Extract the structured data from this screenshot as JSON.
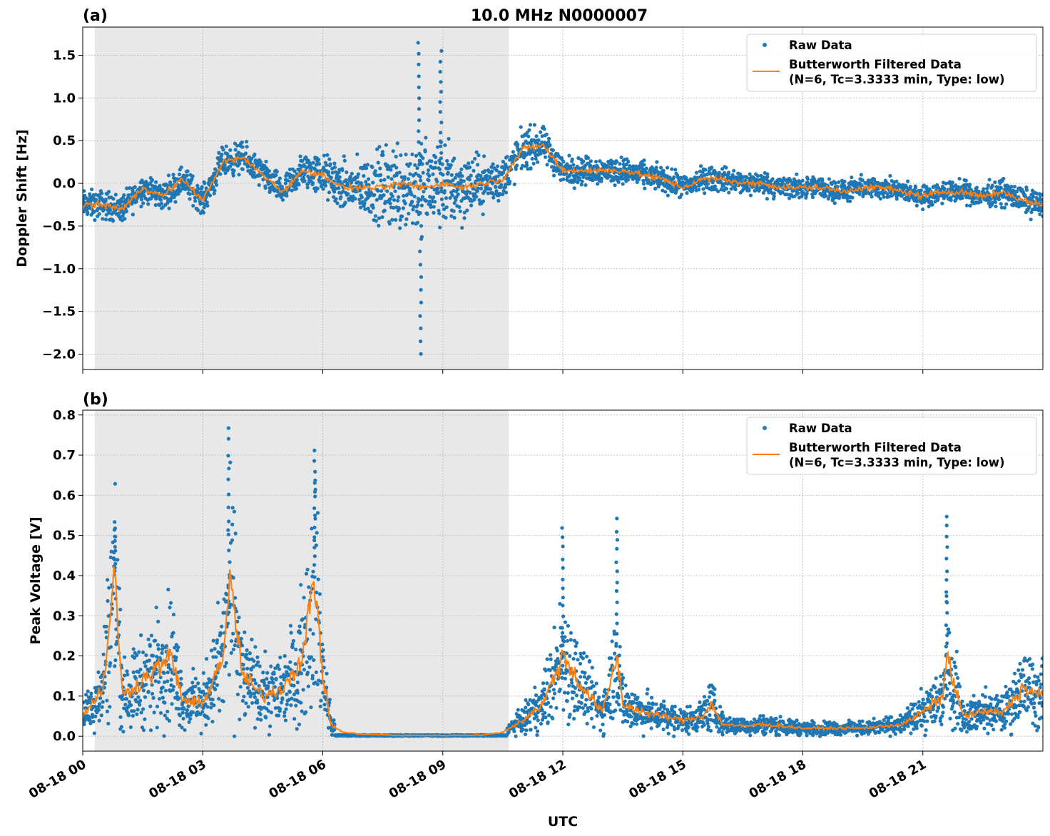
{
  "chart_data": [
    {
      "type": "scatter+line",
      "panel_label": "(a)",
      "title": "10.0 MHz N0000007",
      "xlabel": "",
      "ylabel": "Doppler Shift [Hz]",
      "xlim_hours_utc": [
        0,
        24
      ],
      "ylim": [
        -2.18,
        1.83
      ],
      "yticks": [
        -2.0,
        -1.5,
        -1.0,
        -0.5,
        0.0,
        0.5,
        1.0,
        1.5
      ],
      "ytick_labels": [
        "−2.0",
        "−1.5",
        "−1.0",
        "−0.5",
        "0.0",
        "0.5",
        "1.0",
        "1.5"
      ],
      "grid": true,
      "legend_position": "top-right",
      "shaded_interval_hours_utc": [
        0.3,
        10.65
      ],
      "series": [
        {
          "name": "Raw Data",
          "kind": "scatter",
          "color": "#1f77b4",
          "approx_spread_hours": [
            0,
            1,
            2,
            3,
            4,
            5,
            6,
            7,
            8,
            9,
            10,
            10.7,
            11,
            12,
            14,
            16,
            20,
            22,
            23,
            24
          ],
          "approx_spread_hz": [
            0.2,
            0.2,
            0.2,
            0.2,
            0.22,
            0.2,
            0.3,
            0.4,
            0.7,
            0.65,
            0.35,
            0.3,
            0.3,
            0.2,
            0.18,
            0.17,
            0.15,
            0.15,
            0.18,
            0.18
          ],
          "extremes": [
            {
              "x": 8.45,
              "y": -2.0
            },
            {
              "x": 8.4,
              "y": 1.65
            },
            {
              "x": 8.95,
              "y": 1.55
            }
          ]
        },
        {
          "name": "Butterworth Filtered Data\n(N=6, Tc=3.3333 min, Type: low)",
          "kind": "line",
          "color": "#ff7f0e",
          "x_hours": [
            0,
            0.5,
            1,
            1.5,
            2,
            2.5,
            3,
            3.5,
            4,
            4.5,
            5,
            5.5,
            6,
            6.5,
            7,
            7.5,
            8,
            8.5,
            9,
            9.5,
            10,
            10.5,
            11,
            11.5,
            12,
            12.5,
            13,
            13.5,
            14,
            14.5,
            15,
            15.5,
            16,
            16.5,
            17,
            17.5,
            18,
            18.5,
            19,
            19.5,
            20,
            20.5,
            21,
            21.5,
            22,
            22.5,
            23,
            23.5,
            24
          ],
          "y": [
            -0.25,
            -0.25,
            -0.3,
            -0.05,
            -0.15,
            0.05,
            -0.2,
            0.25,
            0.3,
            0.1,
            -0.1,
            0.15,
            0.1,
            -0.05,
            -0.05,
            -0.05,
            0.0,
            -0.05,
            0.0,
            -0.05,
            0.0,
            0.05,
            0.4,
            0.45,
            0.15,
            0.15,
            0.15,
            0.15,
            0.1,
            0.05,
            -0.05,
            0.05,
            0.05,
            0.0,
            0.0,
            -0.05,
            -0.05,
            -0.05,
            -0.1,
            -0.05,
            -0.05,
            -0.1,
            -0.15,
            -0.1,
            -0.1,
            -0.15,
            -0.1,
            -0.2,
            -0.25
          ]
        }
      ]
    },
    {
      "type": "scatter+line",
      "panel_label": "(b)",
      "title": "",
      "xlabel": "UTC",
      "ylabel": "Peak Voltage [V]",
      "xlim_hours_utc": [
        0,
        24
      ],
      "ylim": [
        -0.037,
        0.812
      ],
      "yticks": [
        0.0,
        0.1,
        0.2,
        0.3,
        0.4,
        0.5,
        0.6,
        0.7,
        0.8
      ],
      "ytick_labels": [
        "0.0",
        "0.1",
        "0.2",
        "0.3",
        "0.4",
        "0.5",
        "0.6",
        "0.7",
        "0.8"
      ],
      "grid": true,
      "legend_position": "top-right",
      "shaded_interval_hours_utc": [
        0.3,
        10.65
      ],
      "series": [
        {
          "name": "Raw Data",
          "kind": "scatter",
          "color": "#1f77b4",
          "extremes": [
            {
              "x": 3.65,
              "y": 0.77
            },
            {
              "x": 5.8,
              "y": 0.71
            },
            {
              "x": 0.8,
              "y": 0.52
            },
            {
              "x": 13.35,
              "y": 0.54
            },
            {
              "x": 21.6,
              "y": 0.55
            },
            {
              "x": 12.0,
              "y": 0.52
            }
          ]
        },
        {
          "name": "Butterworth Filtered Data\n(N=6, Tc=3.3333 min, Type: low)",
          "kind": "line",
          "color": "#ff7f0e",
          "x_hours": [
            0,
            0.5,
            0.8,
            1,
            1.5,
            2,
            2.2,
            2.5,
            3,
            3.5,
            3.7,
            4,
            4.5,
            5,
            5.5,
            5.8,
            6,
            6.2,
            6.5,
            7,
            8,
            9,
            10,
            10.5,
            11,
            11.5,
            12,
            12.5,
            13,
            13.35,
            13.5,
            14,
            14.5,
            15,
            15.5,
            15.7,
            16,
            16.5,
            17,
            17.5,
            18,
            18.5,
            19,
            19.5,
            20,
            20.5,
            21,
            21.5,
            21.6,
            22,
            22.5,
            23,
            23.5,
            24
          ],
          "y": [
            0.05,
            0.12,
            0.4,
            0.1,
            0.14,
            0.18,
            0.2,
            0.09,
            0.08,
            0.2,
            0.38,
            0.15,
            0.1,
            0.12,
            0.2,
            0.4,
            0.15,
            0.03,
            0.01,
            0.005,
            0.002,
            0.002,
            0.003,
            0.01,
            0.04,
            0.08,
            0.2,
            0.12,
            0.06,
            0.2,
            0.08,
            0.06,
            0.05,
            0.04,
            0.05,
            0.08,
            0.03,
            0.025,
            0.03,
            0.025,
            0.02,
            0.02,
            0.02,
            0.02,
            0.025,
            0.03,
            0.06,
            0.1,
            0.2,
            0.05,
            0.06,
            0.06,
            0.12,
            0.1
          ]
        }
      ]
    }
  ],
  "xaxis": {
    "tick_hours": [
      0,
      3,
      6,
      9,
      12,
      15,
      18,
      21
    ],
    "tick_labels": [
      "08-18 00",
      "08-18 03",
      "08-18 06",
      "08-18 09",
      "08-18 12",
      "08-18 15",
      "08-18 18",
      "08-18 21"
    ]
  },
  "legend": {
    "raw": "Raw Data",
    "filtered_line1": "Butterworth Filtered Data",
    "filtered_line2": "(N=6, Tc=3.3333 min, Type: low)"
  }
}
